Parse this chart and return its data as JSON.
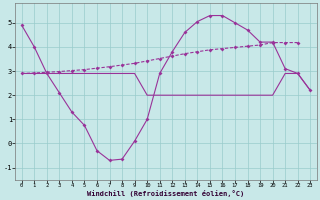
{
  "x": [
    0,
    1,
    2,
    3,
    4,
    5,
    6,
    7,
    8,
    9,
    10,
    11,
    12,
    13,
    14,
    15,
    16,
    17,
    18,
    19,
    20,
    21,
    22,
    23
  ],
  "line1": [
    4.9,
    4.0,
    2.9,
    2.1,
    1.3,
    0.75,
    -0.3,
    -0.7,
    -0.65,
    0.1,
    1.0,
    2.9,
    3.8,
    4.6,
    5.05,
    5.3,
    5.3,
    5.0,
    4.7,
    4.2,
    4.2,
    3.1,
    2.9,
    2.2
  ],
  "line2_x": [
    0,
    1,
    2,
    3,
    4,
    5,
    6,
    7,
    8,
    9,
    10,
    11,
    12,
    13,
    14,
    15,
    16,
    17,
    18,
    19,
    20,
    21,
    22
  ],
  "line2_y": [
    2.9,
    2.92,
    2.95,
    2.98,
    3.02,
    3.06,
    3.12,
    3.18,
    3.25,
    3.32,
    3.42,
    3.52,
    3.62,
    3.72,
    3.8,
    3.88,
    3.93,
    3.98,
    4.03,
    4.08,
    4.18,
    4.18,
    4.18
  ],
  "line3_x": [
    0,
    1,
    2,
    3,
    4,
    5,
    6,
    7,
    8,
    9,
    10,
    11,
    12,
    13,
    14,
    15,
    16,
    17,
    18,
    19,
    20,
    21,
    22,
    23
  ],
  "line3_y": [
    2.9,
    2.9,
    2.9,
    2.9,
    2.9,
    2.9,
    2.9,
    2.9,
    2.9,
    2.9,
    2.0,
    2.0,
    2.0,
    2.0,
    2.0,
    2.0,
    2.0,
    2.0,
    2.0,
    2.0,
    2.0,
    2.9,
    2.9,
    2.2
  ],
  "line_color": "#993399",
  "bg_color": "#c8e8e8",
  "grid_color": "#99cccc",
  "xlabel": "Windchill (Refroidissement éolien,°C)",
  "xlim": [
    -0.5,
    23.5
  ],
  "ylim": [
    -1.5,
    5.8
  ],
  "yticks": [
    -1,
    0,
    1,
    2,
    3,
    4,
    5
  ],
  "xticks": [
    0,
    1,
    2,
    3,
    4,
    5,
    6,
    7,
    8,
    9,
    10,
    11,
    12,
    13,
    14,
    15,
    16,
    17,
    18,
    19,
    20,
    21,
    22,
    23
  ]
}
